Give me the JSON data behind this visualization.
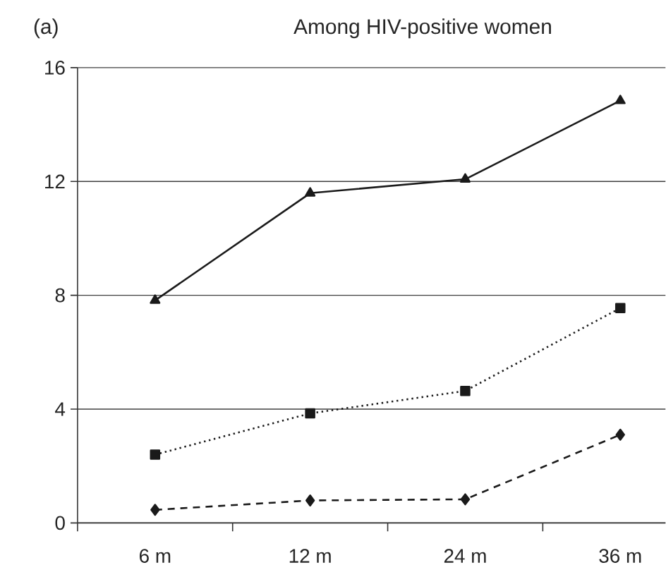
{
  "chart_data": {
    "type": "line",
    "title": "Among HIV-positive women",
    "annotations": [
      "(a)"
    ],
    "categories": [
      "6 m",
      "12 m",
      "24 m",
      "36 m"
    ],
    "series": [
      {
        "color": "#1a1a1a",
        "marker": "triangle",
        "line_style": "solid",
        "values": [
          7.82,
          11.59,
          12.08,
          14.84
        ]
      },
      {
        "color": "#1a1a1a",
        "marker": "square",
        "line_style": "dotted",
        "values": [
          2.4,
          3.85,
          4.64,
          7.55
        ]
      },
      {
        "color": "#1a1a1a",
        "marker": "diamond",
        "line_style": "dashed",
        "values": [
          0.46,
          0.79,
          0.83,
          3.1
        ]
      }
    ],
    "ylim": [
      0,
      16
    ],
    "yticks": [
      0,
      4,
      8,
      12,
      16
    ],
    "grid": "y"
  }
}
